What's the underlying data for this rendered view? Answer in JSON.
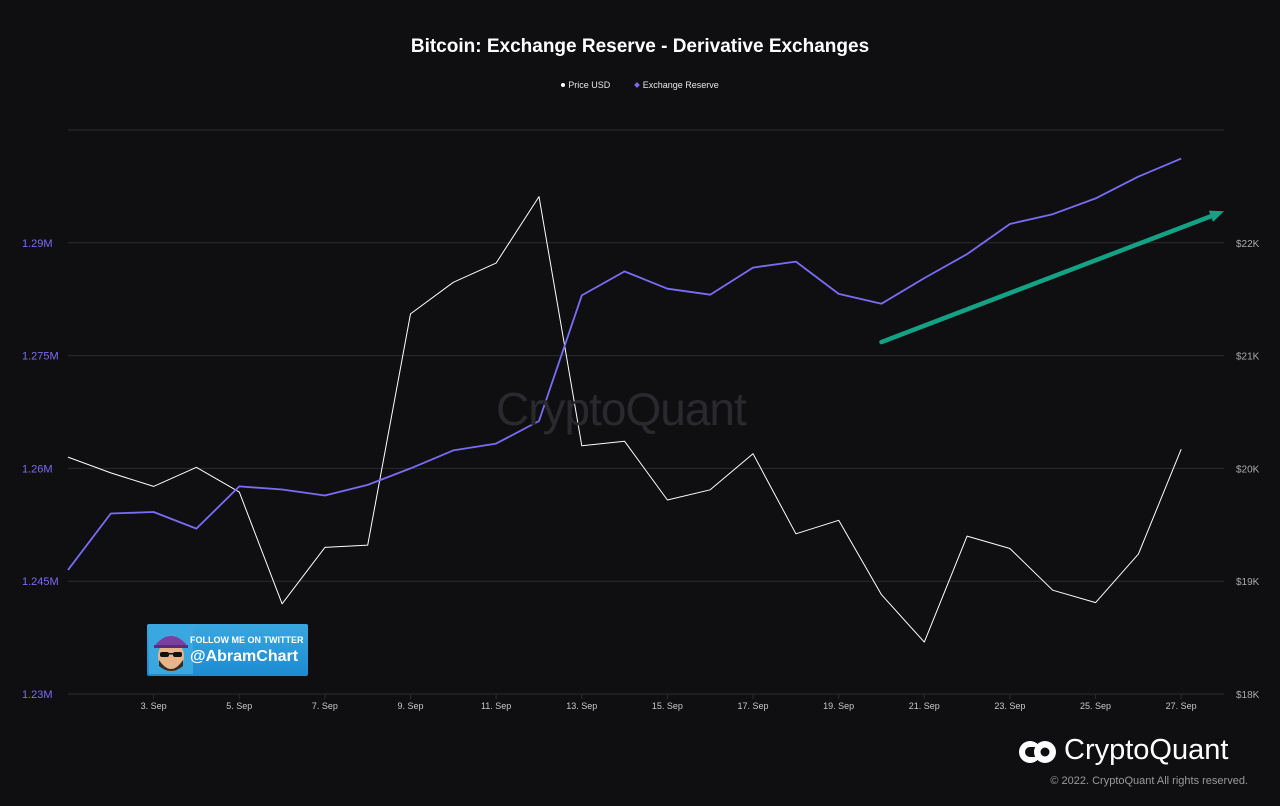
{
  "chart_data": {
    "type": "line",
    "title": "Bitcoin: Exchange Reserve - Derivative Exchanges",
    "legend": [
      "Price USD",
      "Exchange Reserve"
    ],
    "legend_position": "top-center",
    "x_ticks": [
      "3. Sep",
      "5. Sep",
      "7. Sep",
      "9. Sep",
      "11. Sep",
      "13. Sep",
      "15. Sep",
      "17. Sep",
      "19. Sep",
      "21. Sep",
      "23. Sep",
      "25. Sep",
      "27. Sep"
    ],
    "x_range": [
      "2022-09-01",
      "2022-09-28"
    ],
    "y_left": {
      "range": [
        1230000,
        1305000
      ],
      "ticks": [
        1230000,
        1245000,
        1260000,
        1275000,
        1290000
      ],
      "tick_labels": [
        "1.23M",
        "1.245M",
        "1.26M",
        "1.275M",
        "1.29M"
      ]
    },
    "y_right": {
      "range": [
        18000,
        23000
      ],
      "ticks": [
        18000,
        19000,
        20000,
        21000,
        22000
      ],
      "tick_labels": [
        "$18K",
        "$19K",
        "$20K",
        "$21K",
        "$22K"
      ]
    },
    "grid": true,
    "series": [
      {
        "name": "Price USD",
        "axis": "right",
        "color": "#ffffff",
        "x": [
          "2022-09-01",
          "2022-09-02",
          "2022-09-03",
          "2022-09-04",
          "2022-09-05",
          "2022-09-06",
          "2022-09-07",
          "2022-09-08",
          "2022-09-09",
          "2022-09-10",
          "2022-09-11",
          "2022-09-12",
          "2022-09-13",
          "2022-09-14",
          "2022-09-15",
          "2022-09-16",
          "2022-09-17",
          "2022-09-18",
          "2022-09-19",
          "2022-09-20",
          "2022-09-21",
          "2022-09-22",
          "2022-09-23",
          "2022-09-24",
          "2022-09-25",
          "2022-09-26",
          "2022-09-27"
        ],
        "values": [
          20100,
          19960,
          19840,
          20010,
          19790,
          18800,
          19300,
          19320,
          21370,
          21650,
          21820,
          22410,
          20200,
          20240,
          19720,
          19810,
          20130,
          19420,
          19540,
          18880,
          18460,
          19400,
          19290,
          18920,
          18810,
          19240,
          20170
        ]
      },
      {
        "name": "Exchange Reserve",
        "axis": "left",
        "color": "#7b6cf6",
        "x": [
          "2022-09-01",
          "2022-09-02",
          "2022-09-03",
          "2022-09-04",
          "2022-09-05",
          "2022-09-06",
          "2022-09-07",
          "2022-09-08",
          "2022-09-09",
          "2022-09-10",
          "2022-09-11",
          "2022-09-12",
          "2022-09-13",
          "2022-09-14",
          "2022-09-15",
          "2022-09-16",
          "2022-09-17",
          "2022-09-18",
          "2022-09-19",
          "2022-09-20",
          "2022-09-21",
          "2022-09-22",
          "2022-09-23",
          "2022-09-24",
          "2022-09-25",
          "2022-09-26",
          "2022-09-27"
        ],
        "values": [
          1246500,
          1254000,
          1254200,
          1252000,
          1257600,
          1257200,
          1256400,
          1257800,
          1260000,
          1262400,
          1263300,
          1266300,
          1283000,
          1286200,
          1283900,
          1283100,
          1286700,
          1287500,
          1283200,
          1281900,
          1285300,
          1288500,
          1292500,
          1293800,
          1295900,
          1298800,
          1301200
        ]
      }
    ],
    "annotations": [
      {
        "type": "arrow",
        "color": "#13a384",
        "x_start": "2022-09-20",
        "y_start": 1276800,
        "x_end": "2022-09-28",
        "y_end": 1294200
      }
    ]
  },
  "watermark": "CryptoQuant",
  "twitter_badge": {
    "line1": "FOLLOW ME ON TWITTER",
    "line2": "@AbramChart"
  },
  "brand": {
    "name": "CryptoQuant",
    "copyright": "© 2022. CryptoQuant All rights reserved."
  },
  "colors": {
    "background": "#0f0f12",
    "grid": "#2b2b30",
    "axis_left": "#7b6cf6",
    "axis_right": "#aaaaaa",
    "tick": "#c8c8c8"
  }
}
